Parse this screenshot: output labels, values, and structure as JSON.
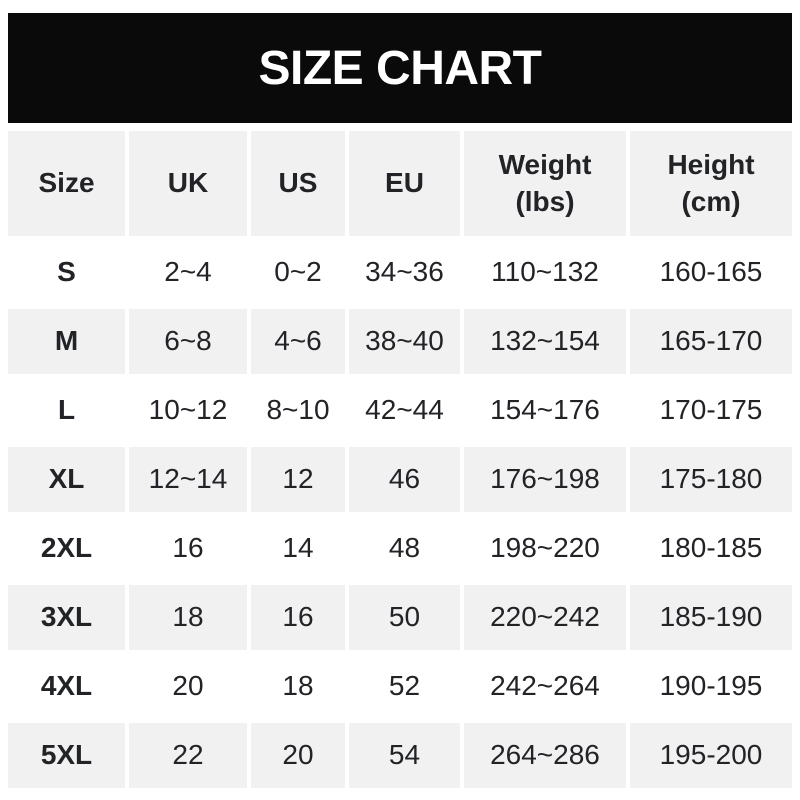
{
  "banner": {
    "title": "SIZE CHART"
  },
  "colors": {
    "banner_bg": "#0a0a0a",
    "banner_text": "#ffffff",
    "stripe": "#f1f1f1",
    "text": "#222326",
    "page_bg": "#ffffff"
  },
  "chart_data": {
    "type": "table",
    "title": "SIZE CHART",
    "columns": [
      {
        "label": "Size"
      },
      {
        "label": "UK"
      },
      {
        "label": "US"
      },
      {
        "label": "EU"
      },
      {
        "label": "Weight",
        "sub": "(lbs)"
      },
      {
        "label": "Height",
        "sub": "(cm)"
      }
    ],
    "rows": [
      [
        "S",
        "2~4",
        "0~2",
        "34~36",
        "110~132",
        "160-165"
      ],
      [
        "M",
        "6~8",
        "4~6",
        "38~40",
        "132~154",
        "165-170"
      ],
      [
        "L",
        "10~12",
        "8~10",
        "42~44",
        "154~176",
        "170-175"
      ],
      [
        "XL",
        "12~14",
        "12",
        "46",
        "176~198",
        "175-180"
      ],
      [
        "2XL",
        "16",
        "14",
        "48",
        "198~220",
        "180-185"
      ],
      [
        "3XL",
        "18",
        "16",
        "50",
        "220~242",
        "185-190"
      ],
      [
        "4XL",
        "20",
        "18",
        "52",
        "242~264",
        "190-195"
      ],
      [
        "5XL",
        "22",
        "20",
        "54",
        "264~286",
        "195-200"
      ]
    ],
    "layout": {
      "striped_rows": [
        "M",
        "XL",
        "3XL",
        "5XL"
      ],
      "header_background": "#f1f1f1",
      "legend": "none",
      "grid": "off"
    }
  }
}
